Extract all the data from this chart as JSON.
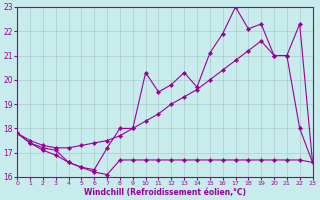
{
  "xlabel": "Windchill (Refroidissement éolien,°C)",
  "background_color": "#c8ecec",
  "grid_color": "#aacccc",
  "line_color": "#990099",
  "xlim": [
    0,
    23
  ],
  "ylim": [
    16,
    23
  ],
  "xticks": [
    0,
    1,
    2,
    3,
    4,
    5,
    6,
    7,
    8,
    9,
    10,
    11,
    12,
    13,
    14,
    15,
    16,
    17,
    18,
    19,
    20,
    21,
    22,
    23
  ],
  "yticks": [
    16,
    17,
    18,
    19,
    20,
    21,
    22,
    23
  ],
  "line_jagged_x": [
    0,
    1,
    2,
    3,
    4,
    5,
    6,
    7,
    8,
    9,
    10,
    11,
    12,
    13,
    14,
    15,
    16,
    17,
    18,
    19,
    20,
    21,
    22,
    23
  ],
  "line_jagged_y": [
    17.8,
    17.4,
    17.2,
    17.1,
    16.6,
    16.4,
    16.3,
    17.2,
    18.0,
    18.0,
    20.3,
    19.5,
    19.8,
    20.3,
    19.7,
    21.1,
    21.9,
    23.0,
    22.1,
    22.3,
    21.0,
    21.0,
    18.0,
    16.6
  ],
  "line_diagonal_x": [
    0,
    1,
    2,
    3,
    4,
    5,
    6,
    7,
    8,
    9,
    10,
    11,
    12,
    13,
    14,
    15,
    16,
    17,
    18,
    19,
    20,
    21,
    22,
    23
  ],
  "line_diagonal_y": [
    17.8,
    17.5,
    17.3,
    17.2,
    17.2,
    17.3,
    17.4,
    17.5,
    17.7,
    18.0,
    18.3,
    18.6,
    19.0,
    19.3,
    19.6,
    20.0,
    20.4,
    20.8,
    21.2,
    21.6,
    21.0,
    21.0,
    22.3,
    16.6
  ],
  "line_bottom_x": [
    0,
    1,
    2,
    3,
    4,
    5,
    6,
    7,
    8,
    9,
    10,
    11,
    12,
    13,
    14,
    15,
    16,
    17,
    18,
    19,
    20,
    21,
    22,
    23
  ],
  "line_bottom_y": [
    17.8,
    17.4,
    17.1,
    16.9,
    16.6,
    16.4,
    16.2,
    16.1,
    16.7,
    16.7,
    16.7,
    16.7,
    16.7,
    16.7,
    16.7,
    16.7,
    16.7,
    16.7,
    16.7,
    16.7,
    16.7,
    16.7,
    16.7,
    16.6
  ]
}
